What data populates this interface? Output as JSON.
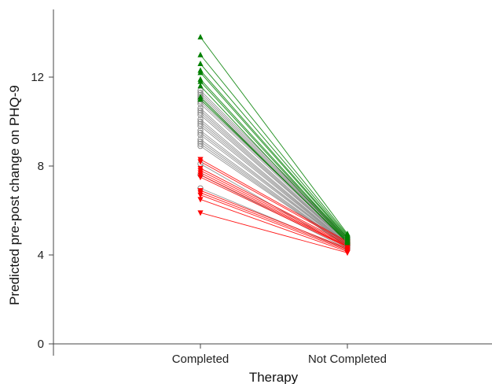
{
  "chart_data": {
    "type": "line",
    "xlabel": "Therapy",
    "ylabel": "Predicted pre-post change on PHQ-9",
    "categories": [
      "Completed",
      "Not Completed"
    ],
    "ylim": [
      0,
      14
    ],
    "yticks": [
      0,
      4,
      8,
      12
    ],
    "grid": false,
    "colors": {
      "green": "#008000",
      "gray": "#8c8c8c",
      "red": "#ff0000",
      "axis": "#444444"
    },
    "groups": [
      {
        "color_key": "green",
        "marker": "triangle-up",
        "pairs": [
          [
            13.8,
            4.95
          ],
          [
            13.0,
            4.9
          ],
          [
            12.6,
            4.85
          ],
          [
            12.3,
            4.8
          ],
          [
            12.2,
            4.75
          ],
          [
            11.9,
            4.7
          ],
          [
            11.8,
            4.65
          ],
          [
            11.6,
            4.6
          ],
          [
            11.1,
            4.55
          ],
          [
            11.0,
            4.6
          ]
        ]
      },
      {
        "color_key": "gray",
        "marker": "circle",
        "pairs": [
          [
            11.4,
            4.8
          ],
          [
            11.3,
            4.75
          ],
          [
            11.2,
            4.72
          ],
          [
            11.1,
            4.7
          ],
          [
            11.0,
            4.68
          ],
          [
            10.9,
            4.65
          ],
          [
            10.8,
            4.62
          ],
          [
            10.6,
            4.6
          ],
          [
            10.5,
            4.58
          ],
          [
            10.4,
            4.56
          ],
          [
            10.3,
            4.55
          ],
          [
            10.1,
            4.52
          ],
          [
            10.0,
            4.5
          ],
          [
            9.9,
            4.48
          ],
          [
            9.8,
            4.46
          ],
          [
            9.6,
            4.45
          ],
          [
            9.5,
            4.44
          ],
          [
            9.4,
            4.42
          ],
          [
            9.2,
            4.4
          ],
          [
            9.1,
            4.38
          ],
          [
            9.0,
            4.36
          ],
          [
            8.9,
            4.35
          ],
          [
            8.1,
            4.3
          ],
          [
            7.6,
            4.28
          ],
          [
            7.0,
            4.25
          ]
        ]
      },
      {
        "color_key": "red",
        "marker": "triangle-down",
        "pairs": [
          [
            8.3,
            4.6
          ],
          [
            8.2,
            4.55
          ],
          [
            7.9,
            4.5
          ],
          [
            7.8,
            4.45
          ],
          [
            7.7,
            4.4
          ],
          [
            7.6,
            4.38
          ],
          [
            7.5,
            4.35
          ],
          [
            6.9,
            4.3
          ],
          [
            6.8,
            4.25
          ],
          [
            6.7,
            4.2
          ],
          [
            6.5,
            4.15
          ],
          [
            5.9,
            4.1
          ]
        ]
      }
    ]
  }
}
